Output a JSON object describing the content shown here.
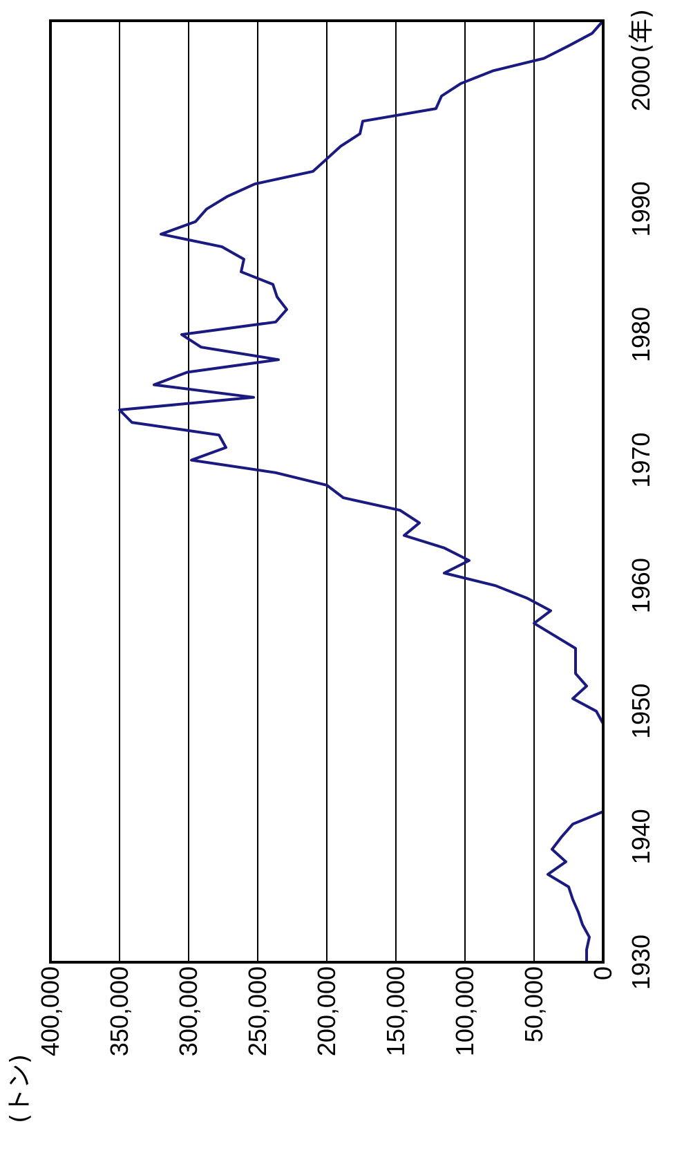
{
  "chart_data": {
    "type": "line",
    "orientation": "rotated-90-clockwise",
    "title": "",
    "xlabel": "(年)",
    "ylabel": "(トン)",
    "xlim": [
      1930,
      2005
    ],
    "ylim": [
      0,
      400000
    ],
    "x_ticks": [
      1930,
      1940,
      1950,
      1960,
      1970,
      1980,
      1990,
      2000
    ],
    "x_tick_labels": [
      "1930",
      "1940",
      "1950",
      "1960",
      "1970",
      "1980",
      "1990",
      "2000"
    ],
    "y_ticks": [
      0,
      50000,
      100000,
      150000,
      200000,
      250000,
      300000,
      350000,
      400000
    ],
    "y_tick_labels": [
      "0",
      "50,000",
      "100,000",
      "150,000",
      "200,000",
      "250,000",
      "300,000",
      "350,000",
      "400,000"
    ],
    "grid": {
      "horizontal": true,
      "vertical": false
    },
    "colors": {
      "line": "#1a1a80",
      "grid": "#000000",
      "frame": "#000000"
    },
    "series": [
      {
        "x": [
          1930,
          1931,
          1932,
          1933,
          1934,
          1935,
          1936,
          1937,
          1938,
          1939,
          1940,
          1941,
          1942,
          1943,
          1944,
          1945,
          1946,
          1947,
          1948,
          1949,
          1950,
          1951,
          1952,
          1953,
          1954,
          1955,
          1956,
          1957,
          1958,
          1959,
          1960,
          1961,
          1962,
          1963,
          1964,
          1965,
          1966,
          1967,
          1968,
          1969,
          1970,
          1971,
          1972,
          1973,
          1974,
          1975,
          1976,
          1977,
          1978,
          1979,
          1980,
          1981,
          1982,
          1983,
          1984,
          1985,
          1986,
          1987,
          1988,
          1989,
          1990,
          1991,
          1992,
          1993,
          1994,
          1995,
          1996,
          1997,
          1998,
          1999,
          2000,
          2001,
          2002,
          2003,
          2004,
          2005
        ],
        "values": [
          12000,
          12000,
          10000,
          15000,
          18000,
          22000,
          25000,
          40000,
          27000,
          37000,
          30000,
          22000,
          0,
          0,
          0,
          0,
          0,
          0,
          0,
          0,
          5000,
          22000,
          12000,
          20000,
          20000,
          20000,
          35000,
          50000,
          38000,
          55000,
          78000,
          115000,
          97000,
          115000,
          144000,
          133000,
          147000,
          188000,
          200000,
          237000,
          298000,
          273000,
          278000,
          341000,
          350000,
          253000,
          325000,
          301000,
          235000,
          291000,
          305000,
          237000,
          229000,
          236000,
          239000,
          262000,
          260000,
          276000,
          320000,
          295000,
          287000,
          272000,
          252000,
          210000,
          200000,
          190000,
          176000,
          174000,
          121000,
          117000,
          103000,
          80000,
          43000,
          25000,
          8000,
          0
        ]
      }
    ]
  }
}
